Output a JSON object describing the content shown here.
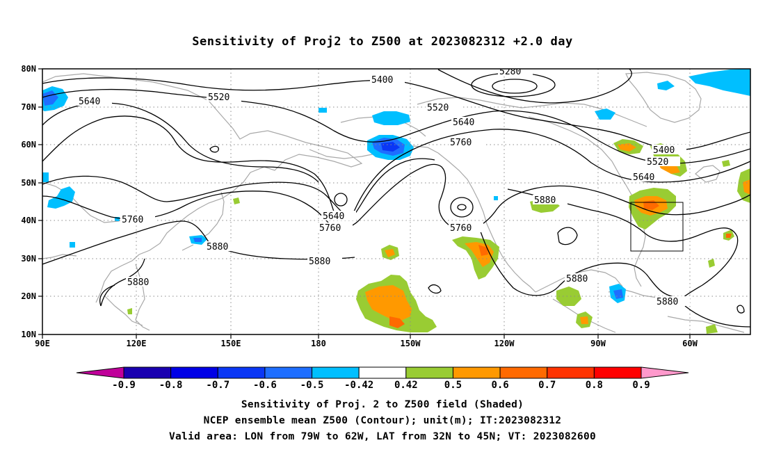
{
  "title": "Sensitivity of Proj2 to Z500 at 2023082312 +2.0 day",
  "map": {
    "lat_labels": [
      "80N",
      "70N",
      "60N",
      "50N",
      "40N",
      "30N",
      "20N",
      "10N"
    ],
    "lon_labels": [
      "90E",
      "120E",
      "150E",
      "180",
      "150W",
      "120W",
      "90W",
      "60W"
    ],
    "contour_labels": [
      "5280",
      "5400",
      "5520",
      "5640",
      "5520",
      "5640",
      "5760",
      "5400",
      "5520",
      "5640",
      "5760",
      "5640",
      "5760",
      "5760",
      "5880",
      "5880",
      "5880",
      "5880",
      "5880",
      "5880"
    ],
    "valid_box": {
      "lon": [
        -79,
        -62
      ],
      "lat": [
        32,
        45
      ]
    }
  },
  "colorbar": {
    "labels": [
      "-0.9",
      "-0.8",
      "-0.7",
      "-0.6",
      "-0.5",
      "-0.42",
      "0.42",
      "0.5",
      "0.6",
      "0.7",
      "0.8",
      "0.9"
    ],
    "colors": [
      "#c0009a",
      "#1a00b0",
      "#0000e6",
      "#0a37f5",
      "#1e6eff",
      "#00bfff",
      "#ffffff",
      "#99cc33",
      "#ff9900",
      "#ff6a00",
      "#ff3300",
      "#ff0000",
      "#ff99cc"
    ]
  },
  "captions": {
    "line1": "Sensitivity of Proj. 2 to Z500 field (Shaded)",
    "line2": "NCEP ensemble mean Z500 (Contour); unit(m); IT:2023082312",
    "line3": "Valid area: LON from 79W to 62W, LAT from 32N to 45N; VT: 2023082600"
  }
}
